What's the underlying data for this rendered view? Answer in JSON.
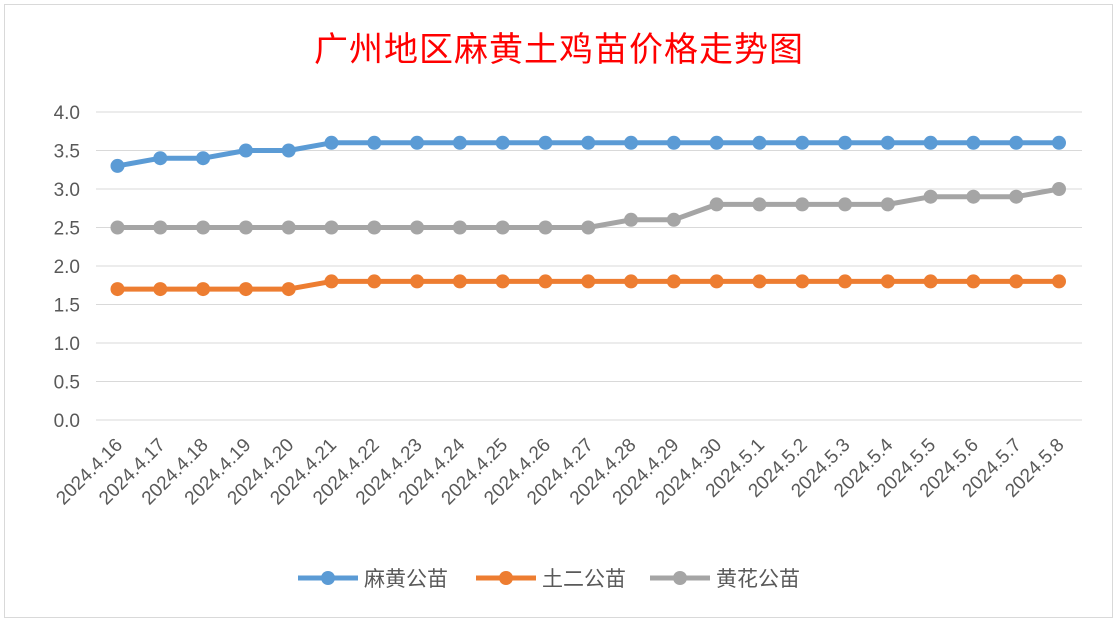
{
  "chart_data": {
    "type": "line",
    "title": "广州地区麻黄土鸡苗价格走势图",
    "categories": [
      "2024.4.16",
      "2024.4.17",
      "2024.4.18",
      "2024.4.19",
      "2024.4.20",
      "2024.4.21",
      "2024.4.22",
      "2024.4.23",
      "2024.4.24",
      "2024.4.25",
      "2024.4.26",
      "2024.4.27",
      "2024.4.28",
      "2024.4.29",
      "2024.4.30",
      "2024.5.1",
      "2024.5.2",
      "2024.5.3",
      "2024.5.4",
      "2024.5.5",
      "2024.5.6",
      "2024.5.7",
      "2024.5.8"
    ],
    "ylim": [
      0,
      4.0
    ],
    "yticks": [
      "4.0",
      "3.5",
      "3.0",
      "2.5",
      "2.0",
      "1.5",
      "1.0",
      "0.5",
      "0.0"
    ],
    "grid": true,
    "legend": "bottom",
    "series": [
      {
        "name": "麻黄公苗",
        "color": "#5b9bd5",
        "values": [
          3.3,
          3.4,
          3.4,
          3.5,
          3.5,
          3.6,
          3.6,
          3.6,
          3.6,
          3.6,
          3.6,
          3.6,
          3.6,
          3.6,
          3.6,
          3.6,
          3.6,
          3.6,
          3.6,
          3.6,
          3.6,
          3.6,
          3.6
        ]
      },
      {
        "name": "土二公苗",
        "color": "#ed7d31",
        "values": [
          1.7,
          1.7,
          1.7,
          1.7,
          1.7,
          1.8,
          1.8,
          1.8,
          1.8,
          1.8,
          1.8,
          1.8,
          1.8,
          1.8,
          1.8,
          1.8,
          1.8,
          1.8,
          1.8,
          1.8,
          1.8,
          1.8,
          1.8
        ]
      },
      {
        "name": "黄花公苗",
        "color": "#a5a5a5",
        "values": [
          2.5,
          2.5,
          2.5,
          2.5,
          2.5,
          2.5,
          2.5,
          2.5,
          2.5,
          2.5,
          2.5,
          2.5,
          2.6,
          2.6,
          2.8,
          2.8,
          2.8,
          2.8,
          2.8,
          2.9,
          2.9,
          2.9,
          3.0
        ]
      }
    ]
  }
}
